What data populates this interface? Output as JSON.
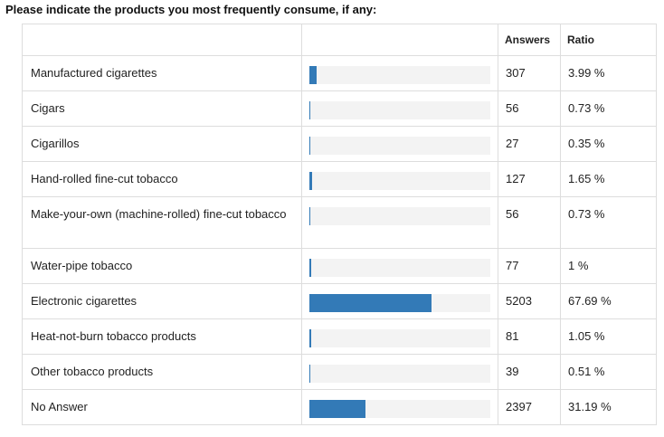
{
  "question": "Please indicate the products you most frequently consume, if any:",
  "headers": {
    "label": "",
    "bar": "",
    "answers": "Answers",
    "ratio": "Ratio"
  },
  "colors": {
    "bar_fill": "#337ab7",
    "bar_track": "#f3f3f3",
    "border": "#dddddd"
  },
  "chart_data": {
    "type": "bar",
    "orientation": "horizontal",
    "title": "Please indicate the products you most frequently consume, if any:",
    "xlabel": "",
    "ylabel": "",
    "xlim": [
      0,
      100
    ],
    "categories": [
      "Manufactured cigarettes",
      "Cigars",
      "Cigarillos",
      "Hand-rolled fine-cut tobacco",
      "Make-your-own (machine-rolled) fine-cut tobacco",
      "Water-pipe tobacco",
      "Electronic cigarettes",
      "Heat-not-burn tobacco products",
      "Other tobacco products",
      "No Answer"
    ],
    "answers": [
      307,
      56,
      27,
      127,
      56,
      77,
      5203,
      81,
      39,
      2397
    ],
    "ratio_percent": [
      3.99,
      0.73,
      0.35,
      1.65,
      0.73,
      1.0,
      67.69,
      1.05,
      0.51,
      31.19
    ],
    "ratio_labels": [
      "3.99 %",
      "0.73 %",
      "0.35 %",
      "1.65 %",
      "0.73 %",
      "1 %",
      "67.69 %",
      "1.05 %",
      "0.51 %",
      "31.19 %"
    ],
    "grid": false,
    "legend": "none"
  }
}
